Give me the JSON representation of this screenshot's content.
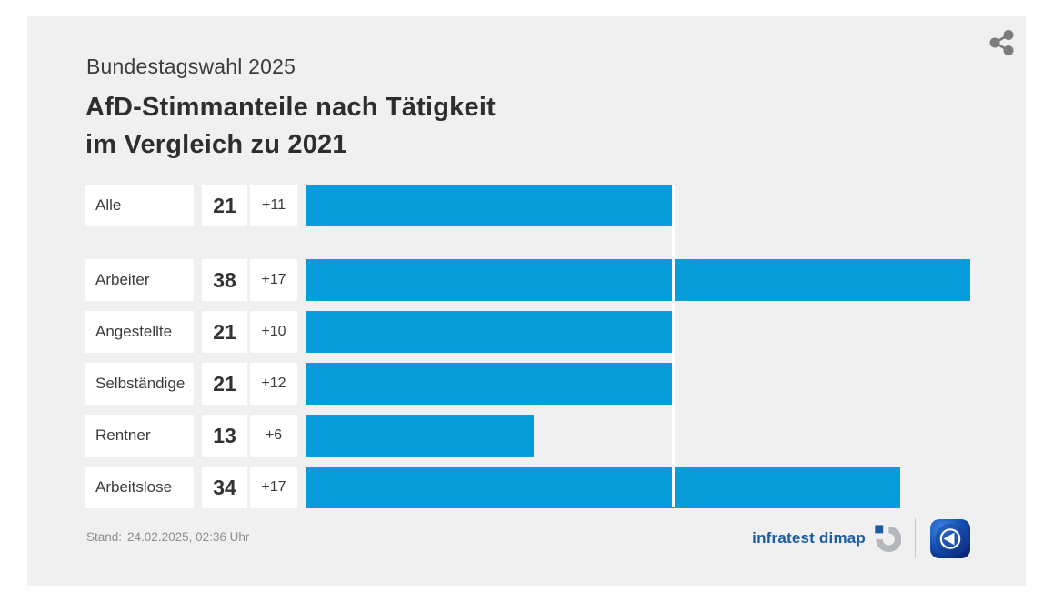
{
  "header": {
    "kicker": "Bundestagswahl 2025",
    "title_line1": "AfD-Stimmanteile nach Tätigkeit",
    "title_line2": "im Vergleich zu 2021"
  },
  "chart_data": {
    "type": "bar",
    "orientation": "horizontal",
    "subtitle": "Bundestagswahl 2025",
    "title": "AfD-Stimmanteile nach Tätigkeit im Vergleich zu 2021",
    "categories": [
      "Alle",
      "Arbeiter",
      "Angestellte",
      "Selbständige",
      "Rentner",
      "Arbeitslose"
    ],
    "values": [
      21,
      38,
      21,
      21,
      13,
      34
    ],
    "changes_vs_2021": [
      "+11",
      "+17",
      "+10",
      "+12",
      "+6",
      "+17"
    ],
    "unit": "Prozent",
    "xlim": [
      0,
      41
    ],
    "reference_line_value": 21,
    "group_break_after_index": 0,
    "grid": false,
    "legend": false
  },
  "footer": {
    "stand_label": "Stand:",
    "stand_value": "24.02.2025, 02:36 Uhr",
    "source_name": "infratest dimap"
  },
  "icons": {
    "share": "share-icon",
    "source_logo": "infratest-dimap-logo",
    "broadcaster_logo": "ard-tagesschau-logo"
  },
  "colors": {
    "bar": "#089cda",
    "card_background": "#f0f0f0",
    "box_background": "#ffffff",
    "reference_line": "#ffffff",
    "text_primary": "#333333",
    "text_muted": "#8f8f8f",
    "source_blue": "#1d5ba4",
    "share_icon": "#7c7c7c"
  }
}
